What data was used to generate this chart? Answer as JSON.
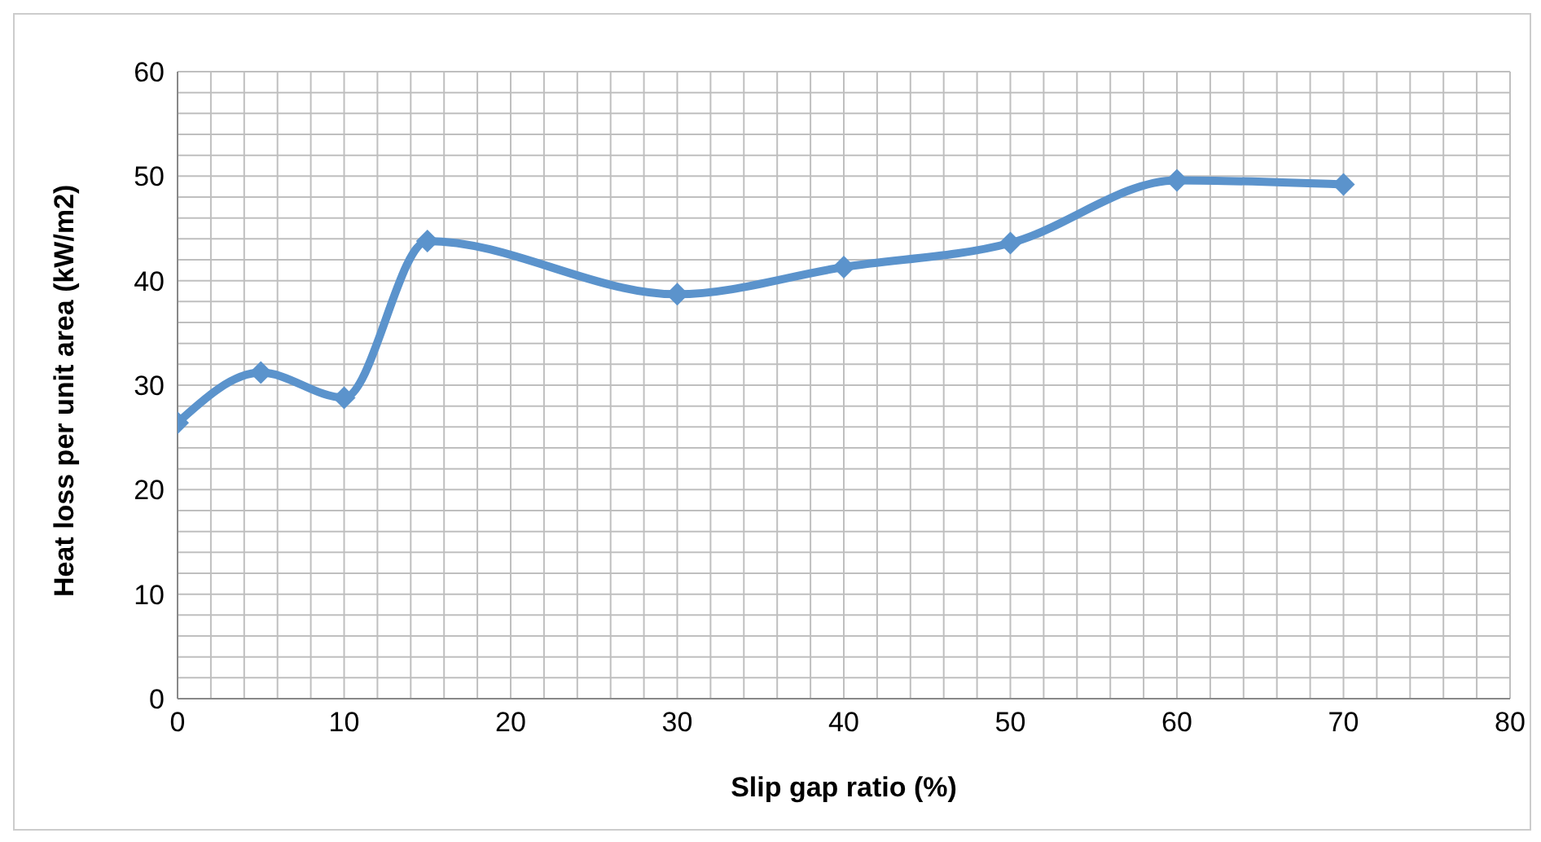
{
  "chart_data": {
    "type": "line",
    "xlabel": "Slip gap ratio (%)",
    "ylabel": "Heat loss per unit area (kW/m2)",
    "x": [
      0,
      5,
      10,
      15,
      30,
      40,
      50,
      60,
      70
    ],
    "series": [
      {
        "color": "#5b93cc",
        "values": [
          26.4,
          31.2,
          28.8,
          43.8,
          38.7,
          41.3,
          43.6,
          49.6,
          49.2
        ]
      }
    ],
    "xlim": [
      0,
      80
    ],
    "ylim": [
      0,
      60
    ],
    "xticks": [
      0,
      {
        "value": 2,
        "label": null
      },
      {
        "value": 4,
        "label": null
      },
      {
        "value": 6,
        "label": null
      },
      {
        "value": 8,
        "label": null
      },
      10,
      {
        "value": 12,
        "label": null
      },
      {
        "value": 14,
        "label": null
      },
      {
        "value": 16,
        "label": null
      },
      {
        "value": 18,
        "label": null
      },
      20,
      {
        "value": 22,
        "label": null
      },
      {
        "value": 24,
        "label": null
      },
      {
        "value": 26,
        "label": null
      },
      {
        "value": 28,
        "label": null
      },
      30,
      {
        "value": 32,
        "label": null
      },
      {
        "value": 34,
        "label": null
      },
      {
        "value": 36,
        "label": null
      },
      {
        "value": 38,
        "label": null
      },
      40,
      {
        "value": 42,
        "label": null
      },
      {
        "value": 44,
        "label": null
      },
      {
        "value": 46,
        "label": null
      },
      {
        "value": 48,
        "label": null
      },
      50,
      {
        "value": 52,
        "label": null
      },
      {
        "value": 54,
        "label": null
      },
      {
        "value": 56,
        "label": null
      },
      {
        "value": 58,
        "label": null
      },
      60,
      {
        "value": 62,
        "label": null
      },
      {
        "value": 64,
        "label": null
      },
      {
        "value": 66,
        "label": null
      },
      {
        "value": 68,
        "label": null
      },
      70,
      {
        "value": 72,
        "label": null
      },
      {
        "value": 74,
        "label": null
      },
      {
        "value": 76,
        "label": null
      },
      {
        "value": 78,
        "label": null
      },
      80
    ],
    "yticks": [
      0,
      {
        "value": 2,
        "label": null
      },
      {
        "value": 4,
        "label": null
      },
      {
        "value": 6,
        "label": null
      },
      {
        "value": 8,
        "label": null
      },
      10,
      {
        "value": 12,
        "label": null
      },
      {
        "value": 14,
        "label": null
      },
      {
        "value": 16,
        "label": null
      },
      {
        "value": 18,
        "label": null
      },
      20,
      {
        "value": 22,
        "label": null
      },
      {
        "value": 24,
        "label": null
      },
      {
        "value": 26,
        "label": null
      },
      {
        "value": 28,
        "label": null
      },
      30,
      {
        "value": 32,
        "label": null
      },
      {
        "value": 34,
        "label": null
      },
      {
        "value": 36,
        "label": null
      },
      {
        "value": 38,
        "label": null
      },
      40,
      {
        "value": 42,
        "label": null
      },
      {
        "value": 44,
        "label": null
      },
      {
        "value": 46,
        "label": null
      },
      {
        "value": 48,
        "label": null
      },
      50,
      {
        "value": 52,
        "label": null
      },
      {
        "value": 54,
        "label": null
      },
      {
        "value": 56,
        "label": null
      },
      {
        "value": 58,
        "label": null
      },
      60
    ],
    "grid": true,
    "marker": "diamond",
    "line_style": "solid",
    "legend": false
  }
}
